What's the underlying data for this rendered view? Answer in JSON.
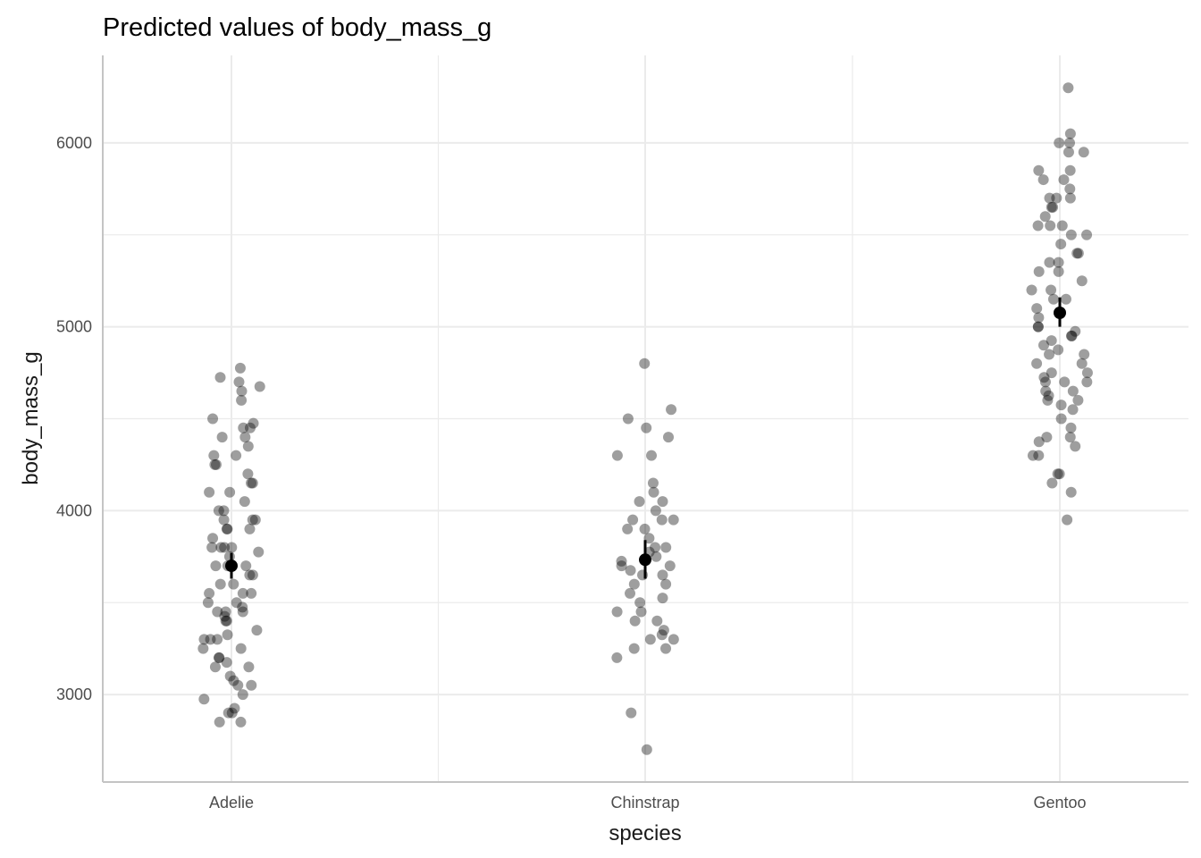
{
  "chart_data": {
    "type": "scatter",
    "title": "Predicted values of body_mass_g",
    "xlabel": "species",
    "ylabel": "body_mass_g",
    "categories": [
      "Adelie",
      "Chinstrap",
      "Gentoo"
    ],
    "ylim": [
      2524,
      6476
    ],
    "yticks": [
      3000,
      4000,
      5000,
      6000
    ],
    "grid": true,
    "point_color": "#000000",
    "predictions": [
      {
        "category": "Adelie",
        "mean": 3700,
        "ci": [
          3630,
          3770
        ]
      },
      {
        "category": "Chinstrap",
        "mean": 3733,
        "ci": [
          3630,
          3840
        ]
      },
      {
        "category": "Gentoo",
        "mean": 5076,
        "ci": [
          5000,
          5160
        ]
      }
    ],
    "raw_points": {
      "Adelie": [
        4775,
        4725,
        4700,
        4675,
        4650,
        4600,
        4500,
        4475,
        4450,
        4450,
        4400,
        4400,
        4350,
        4300,
        4300,
        4250,
        4250,
        4200,
        4150,
        4150,
        4100,
        4100,
        4050,
        4000,
        4000,
        3950,
        3950,
        3950,
        3900,
        3900,
        3900,
        3850,
        3800,
        3800,
        3800,
        3800,
        3775,
        3750,
        3700,
        3700,
        3700,
        3650,
        3650,
        3600,
        3600,
        3550,
        3550,
        3550,
        3500,
        3500,
        3475,
        3450,
        3450,
        3450,
        3425,
        3400,
        3400,
        3350,
        3325,
        3300,
        3300,
        3300,
        3250,
        3250,
        3200,
        3200,
        3175,
        3150,
        3150,
        3100,
        3075,
        3050,
        3050,
        3000,
        2975,
        2925,
        2900,
        2900,
        2850,
        2850
      ],
      "Chinstrap": [
        4800,
        4550,
        4500,
        4450,
        4400,
        4300,
        4300,
        4150,
        4100,
        4050,
        4050,
        4000,
        3950,
        3950,
        3950,
        3900,
        3900,
        3850,
        3800,
        3800,
        3775,
        3750,
        3725,
        3700,
        3700,
        3675,
        3650,
        3650,
        3600,
        3600,
        3550,
        3525,
        3500,
        3450,
        3450,
        3400,
        3400,
        3350,
        3325,
        3300,
        3300,
        3250,
        3250,
        3200,
        2900,
        2700
      ],
      "Gentoo": [
        6300,
        6050,
        6000,
        6000,
        5950,
        5950,
        5850,
        5850,
        5800,
        5800,
        5750,
        5700,
        5700,
        5700,
        5650,
        5650,
        5600,
        5550,
        5550,
        5550,
        5500,
        5500,
        5450,
        5400,
        5400,
        5350,
        5350,
        5300,
        5300,
        5250,
        5200,
        5200,
        5150,
        5150,
        5100,
        5050,
        5000,
        5000,
        4975,
        4950,
        4950,
        4925,
        4900,
        4875,
        4850,
        4850,
        4800,
        4800,
        4750,
        4750,
        4725,
        4700,
        4700,
        4700,
        4650,
        4650,
        4625,
        4600,
        4600,
        4575,
        4550,
        4500,
        4450,
        4400,
        4400,
        4375,
        4350,
        4300,
        4300,
        4200,
        4200,
        4150,
        4100,
        3950
      ]
    }
  }
}
